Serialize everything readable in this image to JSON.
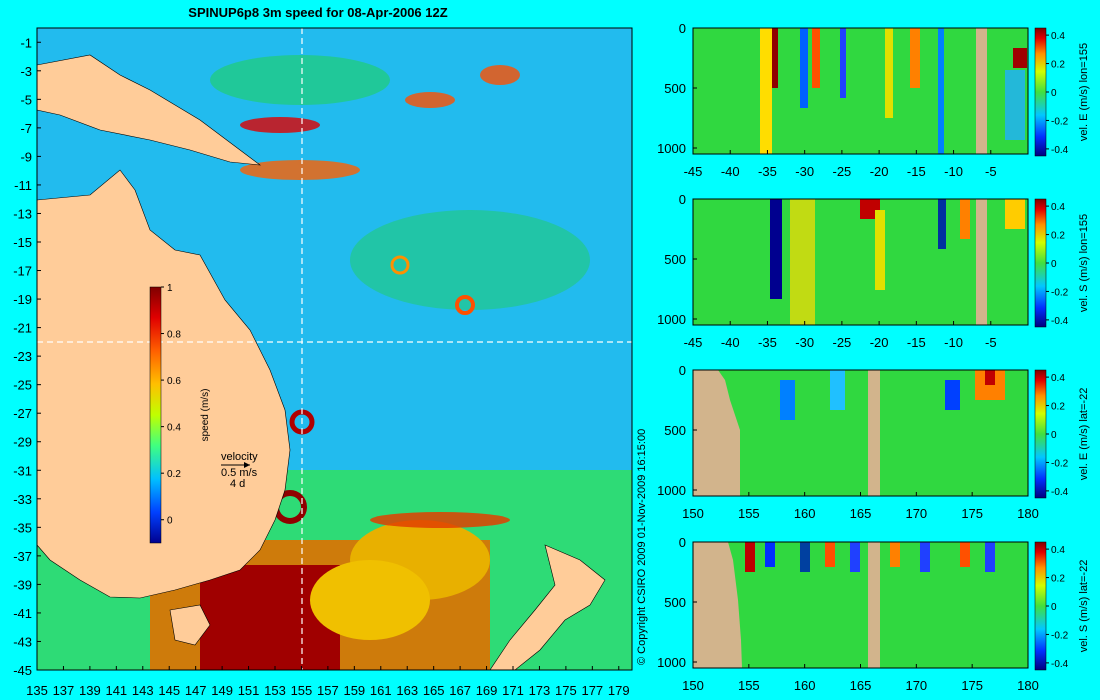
{
  "page": {
    "title": "SPINUP6p8 3m speed for 08-Apr-2006 12Z",
    "copyright": "© Copyright CSIRO 2009   01-Nov-2009 16:15:00",
    "colors": {
      "background": "#00ffff",
      "land": "#ffcc99",
      "section_land": "#d2b48c",
      "reference_line": "#ffffff"
    }
  },
  "chart_data": [
    {
      "id": "map",
      "type": "heatmap",
      "title": "SPINUP6p8 3m speed for 08-Apr-2006 12Z",
      "x": {
        "range": [
          135,
          180
        ],
        "ticks": [
          135,
          137,
          139,
          141,
          143,
          145,
          147,
          149,
          151,
          153,
          155,
          157,
          159,
          161,
          163,
          165,
          167,
          169,
          171,
          173,
          175,
          177,
          179
        ]
      },
      "y": {
        "range": [
          -45,
          0
        ],
        "ticks": [
          -1,
          -3,
          -5,
          -7,
          -9,
          -11,
          -13,
          -15,
          -17,
          -19,
          -21,
          -23,
          -25,
          -27,
          -29,
          -31,
          -33,
          -35,
          -37,
          -39,
          -41,
          -43,
          -45
        ]
      },
      "reference_lines": {
        "lon": 155,
        "lat": -22
      },
      "colorbar": {
        "label": "speed (m/s)",
        "range": [
          -0.1,
          1
        ],
        "ticks": [
          1,
          0.8,
          0.6,
          0.4,
          0.2,
          0
        ]
      },
      "velocity_key": {
        "label": "velocity",
        "speed": "0.5 m/s",
        "time": "4 d"
      }
    },
    {
      "id": "section-1",
      "type": "heatmap",
      "x_ticks": [
        -45,
        -40,
        -35,
        -30,
        -25,
        -20,
        -15,
        -10,
        -5
      ],
      "x_range": [
        -45,
        0
      ],
      "y_ticks": [
        0,
        500,
        1000
      ],
      "y_range": [
        0,
        1050
      ],
      "colorbar_label": "vel. E (m/s) lon=155",
      "colorbar_ticks": [
        0.4,
        0.2,
        0,
        -0.2,
        -0.4
      ],
      "colorbar_range": [
        -0.45,
        0.45
      ]
    },
    {
      "id": "section-2",
      "type": "heatmap",
      "x_ticks": [
        -45,
        -40,
        -35,
        -30,
        -25,
        -20,
        -15,
        -10,
        -5
      ],
      "x_range": [
        -45,
        0
      ],
      "y_ticks": [
        0,
        500,
        1000
      ],
      "y_range": [
        0,
        1050
      ],
      "colorbar_label": "vel. S (m/s) lon=155",
      "colorbar_ticks": [
        0.4,
        0.2,
        0,
        -0.2,
        -0.4
      ],
      "colorbar_range": [
        -0.45,
        0.45
      ]
    },
    {
      "id": "section-3",
      "type": "heatmap",
      "x_ticks": [
        150,
        155,
        160,
        165,
        170,
        175,
        180
      ],
      "x_range": [
        150,
        180
      ],
      "y_ticks": [
        0,
        500,
        1000
      ],
      "y_range": [
        0,
        1050
      ],
      "colorbar_label": "vel. E (m/s) lat=-22",
      "colorbar_ticks": [
        0.4,
        0.2,
        0,
        -0.2,
        -0.4
      ],
      "colorbar_range": [
        -0.45,
        0.45
      ]
    },
    {
      "id": "section-4",
      "type": "heatmap",
      "x_ticks": [
        150,
        155,
        160,
        165,
        170,
        175,
        180
      ],
      "x_range": [
        150,
        180
      ],
      "y_ticks": [
        0,
        500,
        1000
      ],
      "y_range": [
        0,
        1050
      ],
      "colorbar_label": "vel. S (m/s) lat=-22",
      "colorbar_ticks": [
        0.4,
        0.2,
        0,
        -0.2,
        -0.4
      ],
      "colorbar_range": [
        -0.45,
        0.45
      ]
    }
  ]
}
